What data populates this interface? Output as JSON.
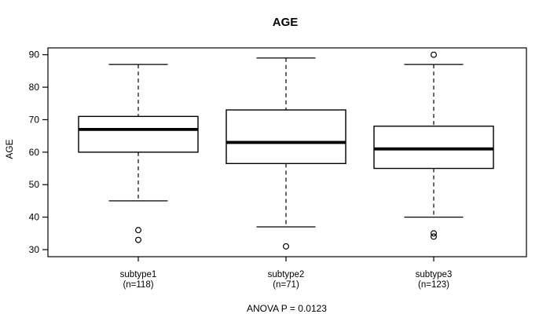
{
  "title": "AGE",
  "chart_data": {
    "type": "boxplot",
    "title": "AGE",
    "xlabel": "",
    "ylabel": "AGE",
    "ylim": [
      30,
      90
    ],
    "y_ticks": [
      30,
      40,
      50,
      60,
      70,
      80,
      90
    ],
    "grid": false,
    "annotation": "ANOVA P = 0.0123",
    "colors": {
      "stroke": "#000000",
      "box_fill": "#ffffff",
      "background": "#ffffff",
      "frame": "#000000"
    },
    "groups": [
      {
        "label": "subtype1",
        "sublabel": "(n=118)",
        "n": 118,
        "whisker_low": 45,
        "q1": 60,
        "median": 67,
        "q3": 71,
        "whisker_high": 87,
        "outliers": [
          36,
          33
        ]
      },
      {
        "label": "subtype2",
        "sublabel": "(n=71)",
        "n": 71,
        "whisker_low": 37,
        "q1": 56.5,
        "median": 63,
        "q3": 73,
        "whisker_high": 89,
        "outliers": [
          31
        ]
      },
      {
        "label": "subtype3",
        "sublabel": "(n=123)",
        "n": 123,
        "whisker_low": 40,
        "q1": 55,
        "median": 61,
        "q3": 68,
        "whisker_high": 87,
        "outliers": [
          90,
          35,
          34
        ]
      }
    ]
  }
}
